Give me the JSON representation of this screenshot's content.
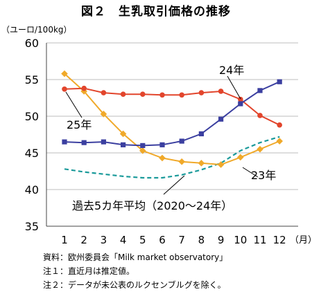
{
  "chart_data": {
    "type": "line",
    "title": "図２　生乳取引価格の推移",
    "ylabel": "（ユーロ/100kg）",
    "xunit": "（月）",
    "x": [
      1,
      2,
      3,
      4,
      5,
      6,
      7,
      8,
      9,
      10,
      11,
      12
    ],
    "ylim": [
      35,
      60
    ],
    "yticks": [
      35,
      40,
      45,
      50,
      55,
      60
    ],
    "grid": true,
    "series": [
      {
        "name": "23年",
        "color": "#f0a92a",
        "marker": "diamond",
        "dash": false,
        "values": [
          55.8,
          53.4,
          50.3,
          47.6,
          45.3,
          44.3,
          43.8,
          43.6,
          43.4,
          44.4,
          45.5,
          46.6
        ]
      },
      {
        "name": "24年",
        "color": "#e2452c",
        "marker": "circle",
        "dash": false,
        "values": [
          53.7,
          53.8,
          53.2,
          53.0,
          53.0,
          52.9,
          52.9,
          53.2,
          53.4,
          52.3,
          50.1,
          48.8
        ]
      },
      {
        "name": "25年",
        "color": "#3b3fa0",
        "marker": "square",
        "dash": false,
        "values": [
          46.5,
          46.4,
          46.5,
          46.1,
          46.0,
          46.1,
          46.6,
          47.6,
          49.6,
          51.7,
          53.5,
          54.7
        ]
      },
      {
        "name": "過去5カ年平均（2020～24年）",
        "color": "#1a9a9a",
        "marker": "none",
        "dash": true,
        "values": [
          42.8,
          42.4,
          42.1,
          41.8,
          41.6,
          41.6,
          42.0,
          42.7,
          43.6,
          45.3,
          46.4,
          47.2
        ]
      }
    ],
    "annotations": [
      "24年",
      "25年",
      "23年",
      "過去5カ年平均（2020～24年）"
    ]
  },
  "notes": [
    "資料：欧州委員会「Milk market observatory」",
    "注１：直近月は推定値。",
    "注２：データが未公表のルクセンブルグを除く。"
  ]
}
